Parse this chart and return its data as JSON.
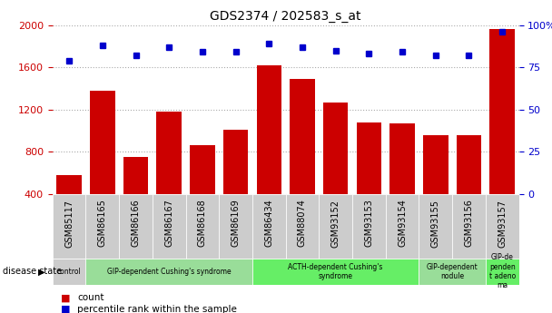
{
  "title": "GDS2374 / 202583_s_at",
  "samples": [
    "GSM85117",
    "GSM86165",
    "GSM86166",
    "GSM86167",
    "GSM86168",
    "GSM86169",
    "GSM86434",
    "GSM88074",
    "GSM93152",
    "GSM93153",
    "GSM93154",
    "GSM93155",
    "GSM93156",
    "GSM93157"
  ],
  "counts": [
    580,
    1380,
    750,
    1180,
    860,
    1010,
    1620,
    1490,
    1270,
    1080,
    1070,
    960,
    960,
    1960
  ],
  "percentiles": [
    79,
    88,
    82,
    87,
    84,
    84,
    89,
    87,
    85,
    83,
    84,
    82,
    82,
    96
  ],
  "ylim_left": [
    400,
    2000
  ],
  "ylim_right": [
    0,
    100
  ],
  "yticks_left": [
    400,
    800,
    1200,
    1600,
    2000
  ],
  "yticks_right": [
    0,
    25,
    50,
    75,
    100
  ],
  "bar_color": "#cc0000",
  "dot_color": "#0000cc",
  "grid_color": "#aaaaaa",
  "groups": [
    {
      "label": "control",
      "start": 0,
      "end": 1,
      "color": "#cccccc"
    },
    {
      "label": "GIP-dependent Cushing's syndrome",
      "start": 1,
      "end": 6,
      "color": "#99dd99"
    },
    {
      "label": "ACTH-dependent Cushing's\nsyndrome",
      "start": 6,
      "end": 11,
      "color": "#66ee66"
    },
    {
      "label": "GIP-dependent\nnodule",
      "start": 11,
      "end": 13,
      "color": "#99dd99"
    },
    {
      "label": "GIP-de\npenden\nt adeno\nma",
      "start": 13,
      "end": 14,
      "color": "#66ee66"
    }
  ],
  "legend_items": [
    {
      "label": "count",
      "color": "#cc0000"
    },
    {
      "label": "percentile rank within the sample",
      "color": "#0000cc"
    }
  ],
  "left_label_color": "#cc0000",
  "right_label_color": "#0000cc",
  "disease_state_label": "disease state",
  "sample_bg_color": "#cccccc",
  "fig_bg_color": "#ffffff"
}
